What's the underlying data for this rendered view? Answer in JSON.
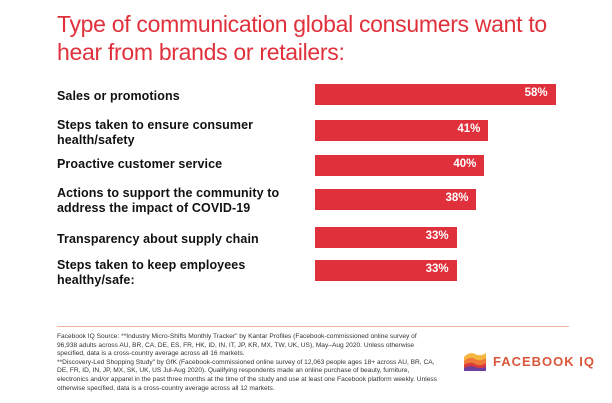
{
  "chart_data": {
    "type": "bar",
    "orientation": "horizontal",
    "title": "Type of communication global consumers want to hear from brands or retailers:",
    "categories": [
      "Sales or promotions",
      "Steps taken to ensure consumer health/safety",
      "Proactive customer service",
      "Actions to support the community to address the impact of COVID-19",
      "Transparency about supply chain",
      "Steps taken to keep employees healthy/safe:"
    ],
    "values": [
      58,
      41,
      40,
      38,
      33,
      33
    ],
    "value_labels": [
      "58%",
      "41%",
      "40%",
      "38%",
      "33%",
      "33%"
    ],
    "bar_color": "#e0303b",
    "grid": false
  },
  "footnote": [
    "Facebook IQ Source: **Industry Micro-Shifts Monthly Tracker\" by Kantar Profiles (Facebook-commissioned online survey of 96,938 adults across AU, BR, CA, DE, ES, FR, HK, ID, IN, IT, JP, KR, MX, TW, UK, US), May–Aug 2020. Unless otherwise specified, data is a cross-country average across all 16 markets.",
    "**Discovery-Led Shopping Study\" by GfK (Facebook-commissioned online survey of 12,063 people ages 18+ across AU, BR, CA, DE, FR, ID, IN, JP, MX, SK, UK, US Jul-Aug 2020). Qualifying respondents made an online purchase of beauty, furniture, electronics and/or apparel in the past three months at the time of the study and use at least one Facebook platform weekly. Unless otherwise specified, data is a cross-country average across all 12 markets."
  ],
  "logo": {
    "text": "FACEBOOK IQ",
    "icon": "facebook-iq-waves-logo"
  }
}
